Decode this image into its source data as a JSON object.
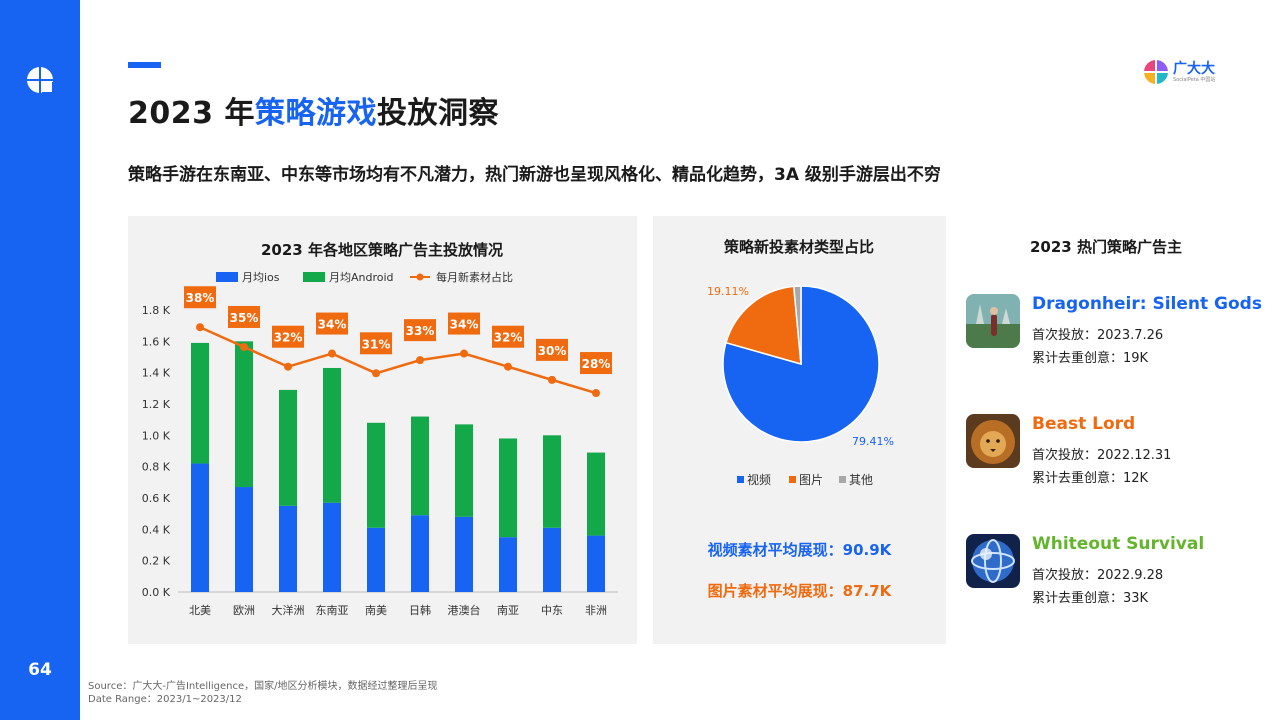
{
  "page": {
    "number": "64",
    "brand": {
      "name": "广大大",
      "sub": "SocialPeta 中国站"
    },
    "title_pre": "2023 年",
    "title_highlight": "策略游戏",
    "title_post": "投放洞察",
    "subtitle": "策略手游在东南亚、中东等市场均有不凡潜力，热门新游也呈现风格化、精品化趋势，3A 级别手游层出不穷",
    "source_line1": "Source：广大大-广告Intelligence，国家/地区分析模块，数据经过整理后呈现",
    "source_line2": "Date Range：2023/1~2023/12"
  },
  "colors": {
    "brand_blue": "#1763f2",
    "ios": "#1763f2",
    "android": "#13a84a",
    "ratio": "#f06a0f",
    "other": "#a8a8a8",
    "whiteout": "#64b42d"
  },
  "chart_data": [
    {
      "type": "bar",
      "stacked": true,
      "title": "2023 年各地区策略广告主投放情况",
      "categories": [
        "北美",
        "欧洲",
        "大洋洲",
        "东南亚",
        "南美",
        "日韩",
        "港澳台",
        "南亚",
        "中东",
        "非洲"
      ],
      "yticks": [
        "0.0 K",
        "0.2 K",
        "0.4 K",
        "0.6 K",
        "0.8 K",
        "1.0 K",
        "1.2 K",
        "1.4 K",
        "1.6 K",
        "1.8 K"
      ],
      "ylim": [
        0,
        1.8
      ],
      "series": [
        {
          "name": "月均ios",
          "type": "bar",
          "values": [
            0.82,
            0.67,
            0.55,
            0.57,
            0.41,
            0.49,
            0.48,
            0.35,
            0.41,
            0.36
          ]
        },
        {
          "name": "月均Android",
          "type": "bar",
          "values": [
            0.77,
            0.93,
            0.74,
            0.86,
            0.67,
            0.63,
            0.59,
            0.63,
            0.59,
            0.53
          ]
        },
        {
          "name": "每月新素材占比",
          "type": "line",
          "values": [
            38,
            35,
            32,
            34,
            31,
            33,
            34,
            32,
            30,
            28
          ],
          "labels": [
            "38%",
            "35%",
            "32%",
            "34%",
            "31%",
            "33%",
            "34%",
            "32%",
            "30%",
            "28%"
          ]
        }
      ],
      "legend": "top"
    },
    {
      "type": "pie",
      "title": "策略新投素材类型占比",
      "slices": [
        {
          "name": "视频",
          "value": 79.41,
          "label": "79.41%"
        },
        {
          "name": "图片",
          "value": 19.11,
          "label": "19.11%"
        },
        {
          "name": "其他",
          "value": 1.48
        }
      ],
      "legend": "bottom"
    }
  ],
  "stats": {
    "video": "视频素材平均展现：90.9K",
    "image": "图片素材平均展现：87.7K"
  },
  "advertisers": {
    "title": "2023 热门策略广告主",
    "items": [
      {
        "name": "Dragonheir: Silent Gods",
        "color": "#1763f2",
        "launch": "首次投放：2023.7.26",
        "creatives": "累计去重创意：19K",
        "icon": "dragonheir-game-icon"
      },
      {
        "name": "Beast Lord",
        "color": "#f06a0f",
        "launch": "首次投放：2022.12.31",
        "creatives": "累计去重创意：12K",
        "icon": "beast-lord-lion-icon"
      },
      {
        "name": "Whiteout Survival",
        "color": "#64b42d",
        "launch": "首次投放：2022.9.28",
        "creatives": "累计去重创意：33K",
        "icon": "whiteout-survival-globe-icon"
      }
    ]
  }
}
